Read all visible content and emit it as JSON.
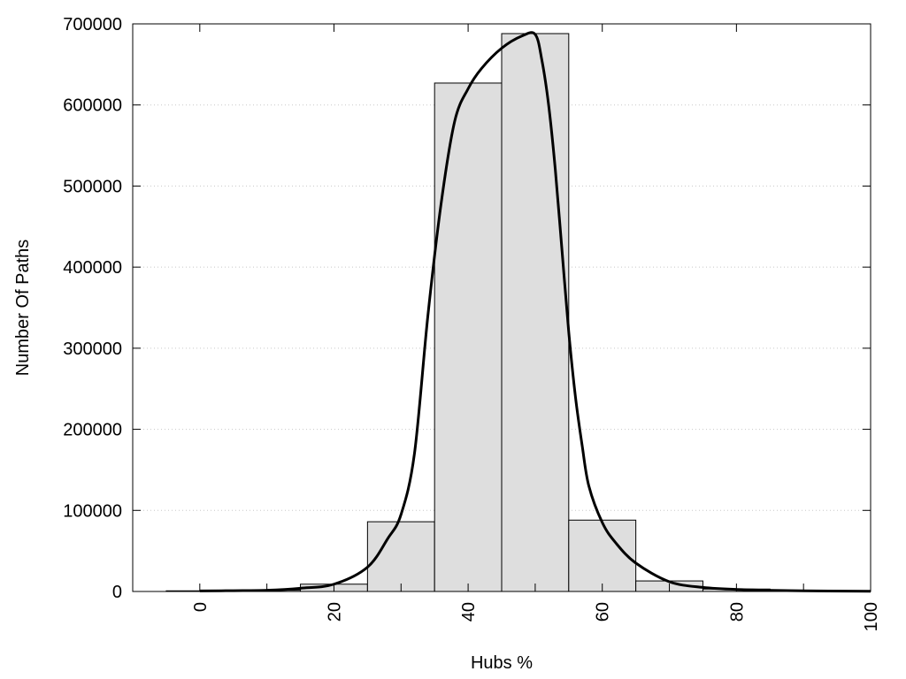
{
  "chart_data": {
    "type": "bar",
    "title": "",
    "xlabel": "Hubs %",
    "ylabel": "Number Of Paths",
    "xlim": [
      -10,
      100
    ],
    "ylim": [
      0,
      700000
    ],
    "x_ticks": [
      0,
      20,
      40,
      60,
      80,
      100
    ],
    "y_ticks": [
      0,
      100000,
      200000,
      300000,
      400000,
      500000,
      600000,
      700000
    ],
    "grid": "horizontal dotted",
    "bar_color": "#dedede",
    "bar_edge_color": "#000000",
    "bins": [
      {
        "x0": -5,
        "x1": 5,
        "value": 800
      },
      {
        "x0": 5,
        "x1": 15,
        "value": 1500
      },
      {
        "x0": 15,
        "x1": 25,
        "value": 9000
      },
      {
        "x0": 25,
        "x1": 35,
        "value": 86000
      },
      {
        "x0": 35,
        "x1": 45,
        "value": 627000
      },
      {
        "x0": 45,
        "x1": 55,
        "value": 688000
      },
      {
        "x0": 55,
        "x1": 65,
        "value": 88000
      },
      {
        "x0": 65,
        "x1": 75,
        "value": 13000
      },
      {
        "x0": 75,
        "x1": 85,
        "value": 3000
      },
      {
        "x0": 85,
        "x1": 95,
        "value": 500
      }
    ],
    "curve": {
      "x": [
        0,
        5,
        10,
        15,
        20,
        25,
        28,
        30,
        32,
        34,
        36,
        38,
        40,
        42,
        45,
        48,
        50,
        51,
        52,
        53,
        54,
        55,
        56,
        57,
        58,
        60,
        62,
        65,
        70,
        75,
        80,
        90,
        100
      ],
      "y": [
        700,
        1000,
        1500,
        4000,
        9000,
        30000,
        65000,
        95000,
        170000,
        340000,
        480000,
        580000,
        620000,
        645000,
        670000,
        685000,
        687000,
        655000,
        600000,
        520000,
        420000,
        320000,
        240000,
        180000,
        130000,
        85000,
        60000,
        35000,
        12000,
        5000,
        2500,
        800,
        300
      ]
    }
  }
}
